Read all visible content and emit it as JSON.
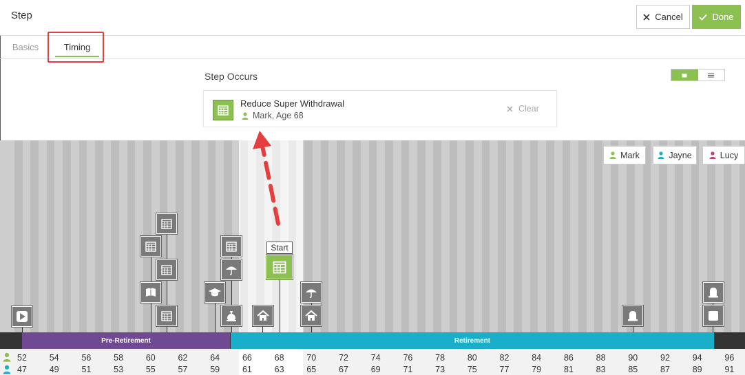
{
  "header": {
    "title": "Step",
    "cancel_label": "Cancel",
    "done_label": "Done"
  },
  "tabs": [
    {
      "label": "Basics",
      "active": false
    },
    {
      "label": "Timing",
      "active": true
    }
  ],
  "step_occurs": {
    "heading": "Step Occurs",
    "event_title": "Reduce Super Withdrawal",
    "event_subtitle": "Mark, Age 68",
    "clear_label": "Clear"
  },
  "people": [
    {
      "name": "Mark",
      "color": "#8cc152"
    },
    {
      "name": "Jayne",
      "color": "#1aafc9"
    },
    {
      "name": "Lucy",
      "color": "#c43a7a"
    }
  ],
  "timeline": {
    "start_label": "Start",
    "phases": [
      {
        "label": "Pre-Retirement",
        "color": "#6f4a92"
      },
      {
        "label": "Retirement",
        "color": "#1aafc9"
      }
    ],
    "ages_mark": [
      "52",
      "54",
      "56",
      "58",
      "60",
      "62",
      "64",
      "66",
      "68",
      "70",
      "72",
      "74",
      "76",
      "78",
      "80",
      "82",
      "84",
      "86",
      "88",
      "90",
      "92",
      "94",
      "96"
    ],
    "ages_jayne": [
      "47",
      "49",
      "51",
      "53",
      "55",
      "57",
      "59",
      "61",
      "63",
      "65",
      "67",
      "69",
      "71",
      "73",
      "75",
      "77",
      "79",
      "81",
      "83",
      "85",
      "87",
      "89",
      "91"
    ]
  },
  "colors": {
    "accent": "#8cc152",
    "annotation": "#e53e3e"
  }
}
